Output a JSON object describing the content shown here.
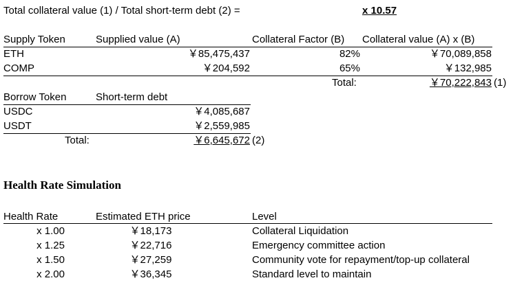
{
  "ratio": {
    "label": "Total collateral value (1) / Total short-term debt (2) =",
    "value": "x 10.57"
  },
  "supply": {
    "headers": [
      "Supply Token",
      "Supplied value (A)",
      "Collateral Factor (B)",
      "Collateral value (A) x (B)"
    ],
    "rows": [
      {
        "token": "ETH",
        "supplied": "￥85,475,437",
        "factor": "82%",
        "collateral": "￥70,089,858"
      },
      {
        "token": "COMP",
        "supplied": "￥204,592",
        "factor": "65%",
        "collateral": "￥132,985"
      }
    ],
    "total_label": "Total:",
    "total_value": "￥70,222,843",
    "total_ref": "(1)"
  },
  "borrow": {
    "headers": [
      "Borrow Token",
      "Short-term debt"
    ],
    "rows": [
      {
        "token": "USDC",
        "debt": "￥4,085,687"
      },
      {
        "token": "USDT",
        "debt": "￥2,559,985"
      }
    ],
    "total_label": "Total:",
    "total_value": "￥6,645,672",
    "total_ref": "(2)"
  },
  "simulation": {
    "title": "Health Rate Simulation",
    "headers": [
      "Health Rate",
      "Estimated ETH price",
      "Level"
    ],
    "rows": [
      {
        "rate": "x 1.00",
        "price": "￥18,173",
        "level": "Collateral Liquidation"
      },
      {
        "rate": "x 1.25",
        "price": "￥22,716",
        "level": "Emergency committee action"
      },
      {
        "rate": "x 1.50",
        "price": "￥27,259",
        "level": "Community vote for repayment/top-up collateral"
      },
      {
        "rate": "x 2.00",
        "price": "￥36,345",
        "level": "Standard level to maintain"
      }
    ]
  }
}
